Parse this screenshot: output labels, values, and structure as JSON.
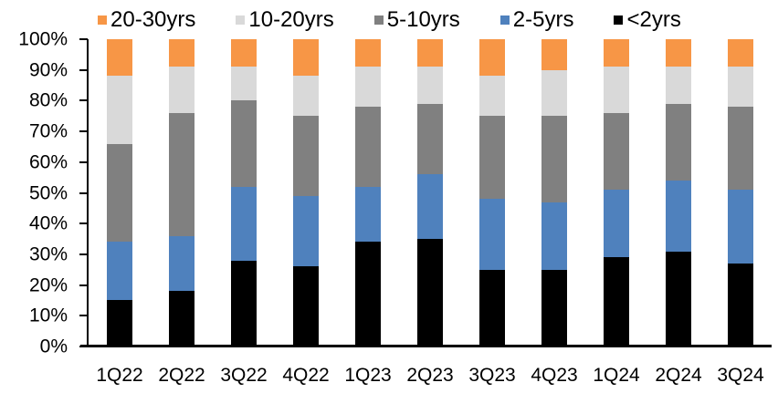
{
  "chart_data": {
    "type": "bar",
    "subtype": "stacked-100-percent-column",
    "title": "",
    "xlabel": "",
    "ylabel": "",
    "ylim": [
      0,
      100
    ],
    "grid": false,
    "legend_position": "top",
    "legend_order": [
      "20-30yrs",
      "10-20yrs",
      "5-10yrs",
      "2-5yrs",
      "<2yrs"
    ],
    "yticks": [
      "100%",
      "90%",
      "80%",
      "70%",
      "60%",
      "50%",
      "40%",
      "30%",
      "20%",
      "10%",
      "0%"
    ],
    "categories": [
      "1Q22",
      "2Q22",
      "3Q22",
      "4Q22",
      "1Q23",
      "2Q23",
      "3Q23",
      "4Q23",
      "1Q24",
      "2Q24",
      "3Q24"
    ],
    "series": [
      {
        "name": "<2yrs",
        "color": "#000000",
        "values": [
          15,
          18,
          28,
          26,
          34,
          35,
          25,
          25,
          29,
          31,
          27
        ]
      },
      {
        "name": "2-5yrs",
        "color": "#4F81BD",
        "values": [
          19,
          18,
          24,
          23,
          18,
          21,
          23,
          22,
          22,
          23,
          24
        ]
      },
      {
        "name": "5-10yrs",
        "color": "#808080",
        "values": [
          32,
          40,
          28,
          26,
          26,
          23,
          27,
          28,
          25,
          25,
          27
        ]
      },
      {
        "name": "10-20yrs",
        "color": "#D9D9D9",
        "values": [
          22,
          15,
          11,
          13,
          13,
          12,
          13,
          15,
          15,
          12,
          13
        ]
      },
      {
        "name": "20-30yrs",
        "color": "#F79646",
        "values": [
          12,
          9,
          9,
          12,
          9,
          9,
          12,
          10,
          9,
          9,
          9
        ]
      }
    ],
    "colors": {
      "axis_line": "#000000",
      "text": "#000000",
      "background": "#FFFFFF"
    }
  }
}
